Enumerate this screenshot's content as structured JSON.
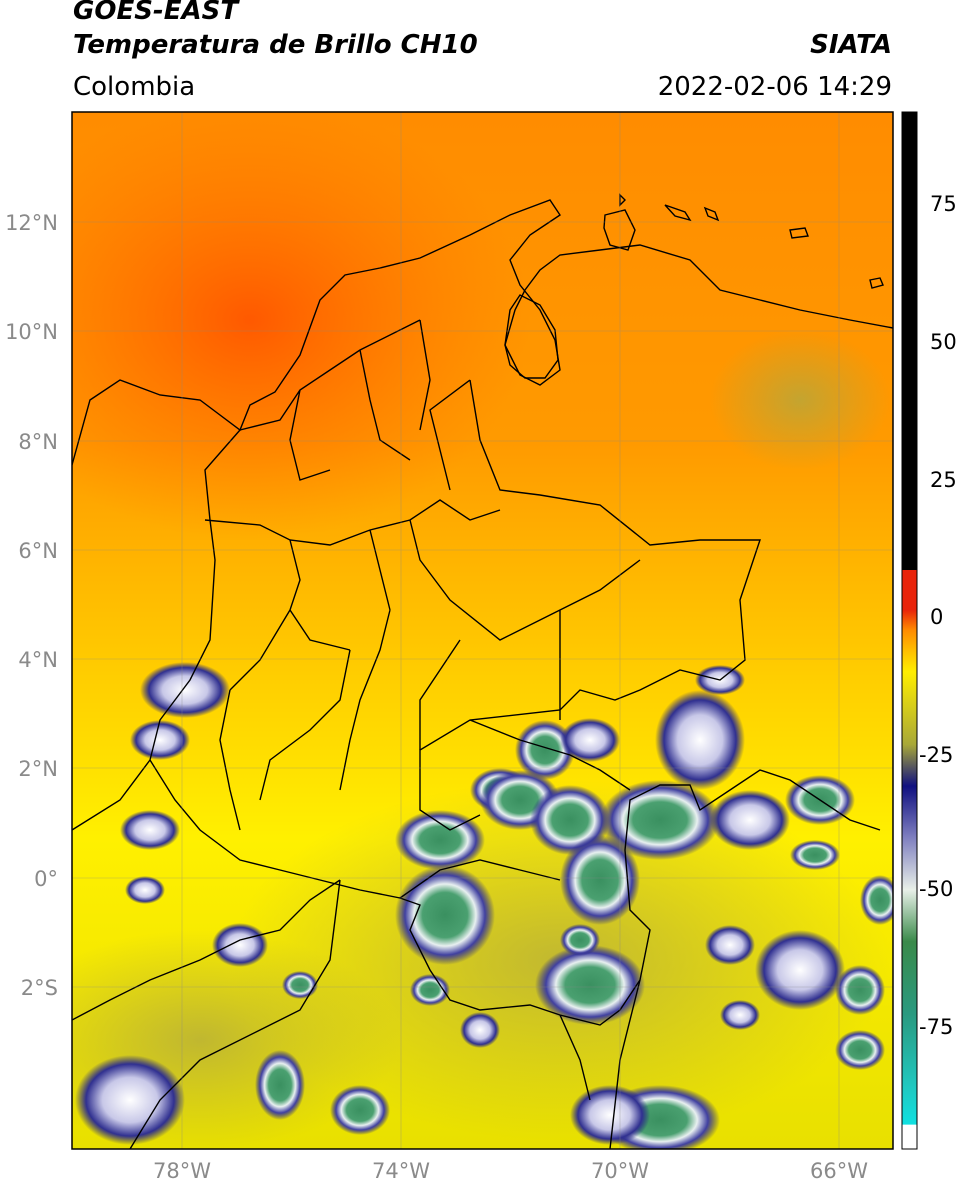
{
  "header": {
    "satellite": "GOES-EAST",
    "product": "Temperatura de Brillo CH10",
    "region": "Colombia",
    "agency": "SIATA",
    "datetime": "2022-02-06 14:29"
  },
  "map": {
    "lat_labels": [
      "12°N",
      "10°N",
      "8°N",
      "6°N",
      "4°N",
      "2°N",
      "0°",
      "2°S"
    ],
    "lon_labels": [
      "78°W",
      "74°W",
      "70°W",
      "66°W"
    ],
    "extent": {
      "lon_min": -79.9,
      "lon_max": -64.9,
      "lat_min": -5.2,
      "lat_max": 14.0
    }
  },
  "colorbar": {
    "labels": [
      "75",
      "50",
      "25",
      "0",
      "-25",
      "-50",
      "-75"
    ],
    "range": [
      -95,
      90
    ],
    "colors": {
      "black": "#000000",
      "red": "#e8230a",
      "orange": "#ff8c00",
      "yellow": "#ffee00",
      "olive": "#a8a838",
      "navy": "#101080",
      "white": "#ffffff",
      "green": "#3a8a4a",
      "teal": "#20b2a0",
      "cyan": "#10e0e0"
    }
  }
}
